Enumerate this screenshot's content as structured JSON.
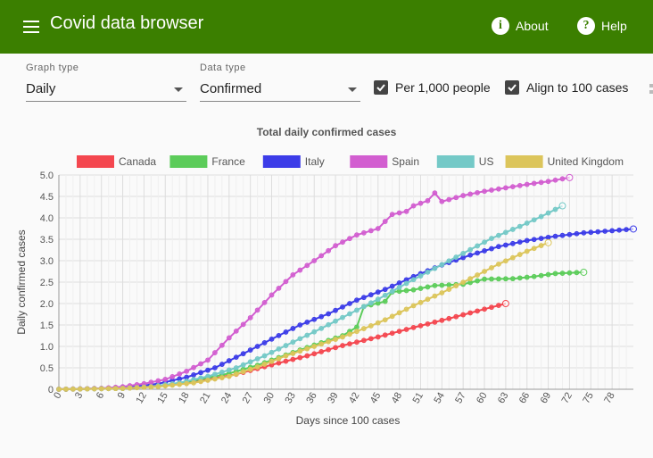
{
  "app": {
    "title": "Covid data browser"
  },
  "nav": {
    "about": "About",
    "help": "Help",
    "about_icon": "info-icon",
    "help_icon": "help-icon"
  },
  "controls": {
    "graph_type": {
      "label": "Graph type",
      "value": "Daily"
    },
    "data_type": {
      "label": "Data type",
      "value": "Confirmed"
    },
    "per_1000": {
      "label": "Per 1,000 people",
      "checked": true
    },
    "align_100": {
      "label": "Align to 100 cases",
      "checked": true
    }
  },
  "colors": {
    "appbar": "#3b7f00"
  },
  "chart_data": {
    "type": "line",
    "title": "Total daily confirmed cases",
    "xlabel": "Days since 100 cases",
    "ylabel": "Daily confirmed cases",
    "xlim": [
      0,
      81
    ],
    "ylim": [
      0,
      5
    ],
    "xticks": [
      "0",
      "3",
      "6",
      "9",
      "12",
      "15",
      "18",
      "21",
      "24",
      "27",
      "30",
      "33",
      "36",
      "39",
      "42",
      "45",
      "48",
      "51",
      "54",
      "57",
      "60",
      "63",
      "66",
      "69",
      "72",
      "75",
      "78"
    ],
    "yticks": [
      "0",
      "0.5",
      "1.0",
      "1.5",
      "2.0",
      "2.5",
      "3.0",
      "3.5",
      "4.0",
      "4.5",
      "5.0"
    ],
    "legend_position": "top",
    "grid": true,
    "series": [
      {
        "name": "Canada",
        "color": "#f4474f",
        "days": 64,
        "points": [
          [
            0,
            0
          ],
          [
            9,
            0.02
          ],
          [
            15,
            0.1
          ],
          [
            20,
            0.2
          ],
          [
            25,
            0.35
          ],
          [
            30,
            0.57
          ],
          [
            35,
            0.78
          ],
          [
            40,
            1.02
          ],
          [
            45,
            1.22
          ],
          [
            50,
            1.44
          ],
          [
            55,
            1.65
          ],
          [
            60,
            1.87
          ],
          [
            63,
            2.0
          ]
        ]
      },
      {
        "name": "France",
        "color": "#5ccc5a",
        "days": 75,
        "points": [
          [
            0,
            0
          ],
          [
            9,
            0.02
          ],
          [
            14,
            0.07
          ],
          [
            19,
            0.2
          ],
          [
            24,
            0.37
          ],
          [
            28,
            0.56
          ],
          [
            32,
            0.8
          ],
          [
            36,
            1.03
          ],
          [
            40,
            1.25
          ],
          [
            42,
            1.45
          ],
          [
            43,
            1.93
          ],
          [
            46,
            2.05
          ],
          [
            47,
            2.27
          ],
          [
            50,
            2.32
          ],
          [
            53,
            2.42
          ],
          [
            57,
            2.45
          ],
          [
            60,
            2.57
          ],
          [
            64,
            2.58
          ],
          [
            67,
            2.63
          ],
          [
            70,
            2.7
          ],
          [
            74,
            2.73
          ]
        ]
      },
      {
        "name": "Italy",
        "color": "#3c3ce8",
        "days": 82,
        "points": [
          [
            0,
            0
          ],
          [
            6,
            0.02
          ],
          [
            10,
            0.05
          ],
          [
            14,
            0.13
          ],
          [
            18,
            0.28
          ],
          [
            22,
            0.5
          ],
          [
            26,
            0.83
          ],
          [
            30,
            1.17
          ],
          [
            34,
            1.5
          ],
          [
            38,
            1.76
          ],
          [
            42,
            2.08
          ],
          [
            46,
            2.33
          ],
          [
            50,
            2.63
          ],
          [
            54,
            2.9
          ],
          [
            58,
            3.13
          ],
          [
            62,
            3.33
          ],
          [
            66,
            3.47
          ],
          [
            70,
            3.57
          ],
          [
            74,
            3.65
          ],
          [
            78,
            3.7
          ],
          [
            81,
            3.74
          ]
        ]
      },
      {
        "name": "Spain",
        "color": "#d25ed0",
        "days": 73,
        "points": [
          [
            0,
            0
          ],
          [
            6,
            0.02
          ],
          [
            9,
            0.06
          ],
          [
            12,
            0.13
          ],
          [
            15,
            0.23
          ],
          [
            18,
            0.42
          ],
          [
            21,
            0.68
          ],
          [
            24,
            1.2
          ],
          [
            27,
            1.67
          ],
          [
            30,
            2.2
          ],
          [
            33,
            2.67
          ],
          [
            36,
            3.0
          ],
          [
            39,
            3.35
          ],
          [
            42,
            3.6
          ],
          [
            45,
            3.75
          ],
          [
            47,
            4.08
          ],
          [
            49,
            4.15
          ],
          [
            50,
            4.28
          ],
          [
            52,
            4.4
          ],
          [
            53,
            4.58
          ],
          [
            54,
            4.38
          ],
          [
            57,
            4.52
          ],
          [
            60,
            4.62
          ],
          [
            63,
            4.7
          ],
          [
            66,
            4.78
          ],
          [
            69,
            4.85
          ],
          [
            72,
            4.94
          ]
        ]
      },
      {
        "name": "US",
        "color": "#74c9c7",
        "days": 72,
        "points": [
          [
            0,
            0
          ],
          [
            9,
            0.02
          ],
          [
            13,
            0.06
          ],
          [
            17,
            0.15
          ],
          [
            21,
            0.3
          ],
          [
            25,
            0.5
          ],
          [
            29,
            0.78
          ],
          [
            33,
            1.1
          ],
          [
            37,
            1.42
          ],
          [
            41,
            1.76
          ],
          [
            45,
            2.1
          ],
          [
            49,
            2.47
          ],
          [
            53,
            2.82
          ],
          [
            57,
            3.17
          ],
          [
            61,
            3.52
          ],
          [
            65,
            3.8
          ],
          [
            68,
            4.03
          ],
          [
            71,
            4.28
          ]
        ]
      },
      {
        "name": "United Kingdom",
        "color": "#dcc55b",
        "days": 70,
        "points": [
          [
            0,
            0
          ],
          [
            9,
            0.02
          ],
          [
            14,
            0.06
          ],
          [
            19,
            0.15
          ],
          [
            24,
            0.3
          ],
          [
            28,
            0.52
          ],
          [
            32,
            0.78
          ],
          [
            36,
            1.0
          ],
          [
            40,
            1.22
          ],
          [
            44,
            1.48
          ],
          [
            46,
            1.62
          ],
          [
            50,
            1.95
          ],
          [
            54,
            2.25
          ],
          [
            58,
            2.58
          ],
          [
            62,
            2.92
          ],
          [
            66,
            3.22
          ],
          [
            69,
            3.42
          ]
        ]
      }
    ]
  }
}
